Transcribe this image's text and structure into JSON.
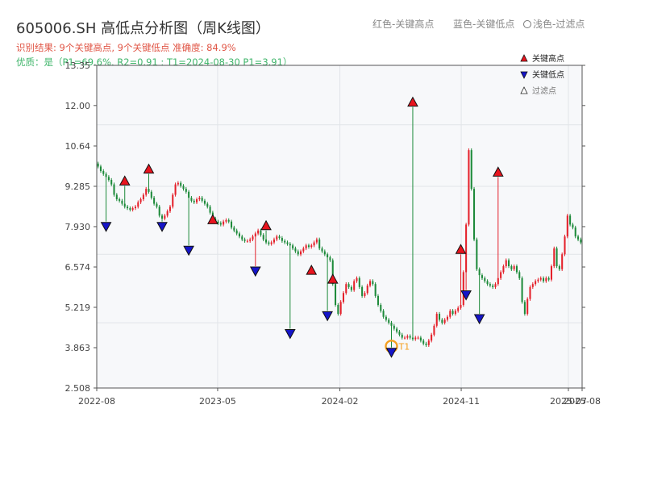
{
  "header": {
    "title": "605006.SH 高低点分析图（周K线图）",
    "result_line": "识别结果: 9个关键高点, 9个关键低点  准确度: 84.9%",
    "quality_line": "优质：是（P1=69.6%, R2=0.91 ; T1=2024-08-30 P1=3.91）",
    "top_legend": {
      "red": "红色-关键高点",
      "blue": "蓝色-关键低点",
      "light": "浅色-过滤点"
    }
  },
  "chart_data": {
    "type": "candlestick",
    "xlabel": "",
    "ylabel": "",
    "yticks": [
      "2.508",
      "3.863",
      "5.219",
      "6.574",
      "7.930",
      "9.285",
      "10.64",
      "12.00",
      "13.35"
    ],
    "ylim": [
      2.508,
      13.35
    ],
    "x_ticks": [
      {
        "label": "2022-08",
        "date": "2022-08"
      },
      {
        "label": "2023-05",
        "date": "2023-05"
      },
      {
        "label": "2024-02",
        "date": "2024-02"
      },
      {
        "label": "2024-11",
        "date": "2024-11"
      },
      {
        "label": "2025-07",
        "date": "2025-07"
      },
      {
        "label": "2025-08",
        "date": "2025-08"
      }
    ],
    "xlim": [
      "2022-08",
      "2025-08"
    ],
    "grid": true,
    "legend": {
      "placement": "top-right",
      "items": [
        {
          "label": "关键高点",
          "symbol": "triangle-up",
          "color": "#e8141e"
        },
        {
          "label": "关键低点",
          "symbol": "triangle-down",
          "color": "#1515c8"
        },
        {
          "label": "过滤点",
          "symbol": "triangle-up-hollow",
          "color": "#888888"
        }
      ]
    },
    "colors": {
      "up": "#e4202a",
      "down": "#1d8a3a",
      "high": "#e8141e",
      "low": "#1515c8",
      "t1": "#f5a020"
    },
    "close": [
      9.95,
      9.8,
      9.7,
      9.6,
      9.5,
      9.35,
      9.0,
      8.85,
      8.8,
      8.7,
      8.6,
      8.55,
      8.5,
      8.55,
      8.6,
      8.75,
      8.85,
      9.0,
      9.2,
      9.1,
      8.9,
      8.7,
      8.6,
      8.3,
      8.2,
      8.3,
      8.45,
      8.6,
      9.0,
      9.35,
      9.4,
      9.3,
      9.2,
      9.1,
      8.9,
      8.8,
      8.75,
      8.85,
      8.9,
      8.8,
      8.7,
      8.6,
      8.4,
      8.2,
      8.1,
      8.05,
      8.0,
      8.1,
      8.15,
      8.1,
      7.9,
      7.8,
      7.7,
      7.6,
      7.5,
      7.45,
      7.45,
      7.5,
      7.6,
      7.7,
      7.8,
      7.65,
      7.5,
      7.4,
      7.35,
      7.4,
      7.5,
      7.6,
      7.55,
      7.45,
      7.4,
      7.35,
      7.3,
      7.2,
      7.1,
      7.0,
      7.1,
      7.2,
      7.3,
      7.25,
      7.3,
      7.4,
      7.5,
      7.2,
      7.1,
      7.0,
      6.9,
      6.8,
      6.0,
      5.3,
      5.0,
      5.4,
      5.7,
      6.0,
      5.9,
      5.8,
      6.1,
      6.2,
      5.9,
      5.6,
      5.7,
      5.95,
      6.1,
      6.0,
      5.6,
      5.3,
      5.1,
      4.9,
      4.8,
      4.7,
      4.6,
      4.5,
      4.4,
      4.3,
      4.2,
      4.2,
      4.25,
      4.2,
      4.15,
      4.2,
      4.2,
      4.1,
      4.0,
      3.95,
      4.1,
      4.3,
      4.6,
      5.0,
      4.8,
      4.7,
      4.8,
      4.9,
      5.1,
      5.0,
      5.1,
      5.2,
      5.3,
      6.4,
      8.0,
      10.5,
      9.2,
      7.5,
      6.5,
      6.3,
      6.2,
      6.1,
      6.0,
      5.95,
      5.9,
      6.0,
      6.2,
      6.4,
      6.6,
      6.8,
      6.6,
      6.5,
      6.6,
      6.4,
      6.2,
      5.4,
      5.0,
      5.5,
      5.9,
      6.0,
      6.1,
      6.15,
      6.2,
      6.1,
      6.2,
      6.15,
      6.6,
      7.2,
      6.6,
      6.5,
      7.0,
      7.6,
      8.3,
      8.0,
      7.9,
      7.6,
      7.5,
      7.4
    ],
    "key_highs": [
      {
        "week": 10,
        "price": 9.3
      },
      {
        "week": 19,
        "price": 9.7
      },
      {
        "week": 43,
        "price": 8.0
      },
      {
        "week": 63,
        "price": 7.8
      },
      {
        "week": 80,
        "price": 6.3
      },
      {
        "week": 88,
        "price": 6.0
      },
      {
        "week": 118,
        "price": 11.95
      },
      {
        "week": 136,
        "price": 7.0
      },
      {
        "week": 150,
        "price": 9.6
      }
    ],
    "key_lows": [
      {
        "week": 3,
        "price": 8.1
      },
      {
        "week": 24,
        "price": 8.1
      },
      {
        "week": 34,
        "price": 7.3
      },
      {
        "week": 59,
        "price": 6.6
      },
      {
        "week": 72,
        "price": 4.5
      },
      {
        "week": 86,
        "price": 5.1
      },
      {
        "week": 110,
        "price": 3.87
      },
      {
        "week": 138,
        "price": 5.8
      },
      {
        "week": 143,
        "price": 5.0
      }
    ],
    "t1_point": {
      "label": "T1",
      "date": "2024-08-30",
      "price": 3.91
    }
  }
}
